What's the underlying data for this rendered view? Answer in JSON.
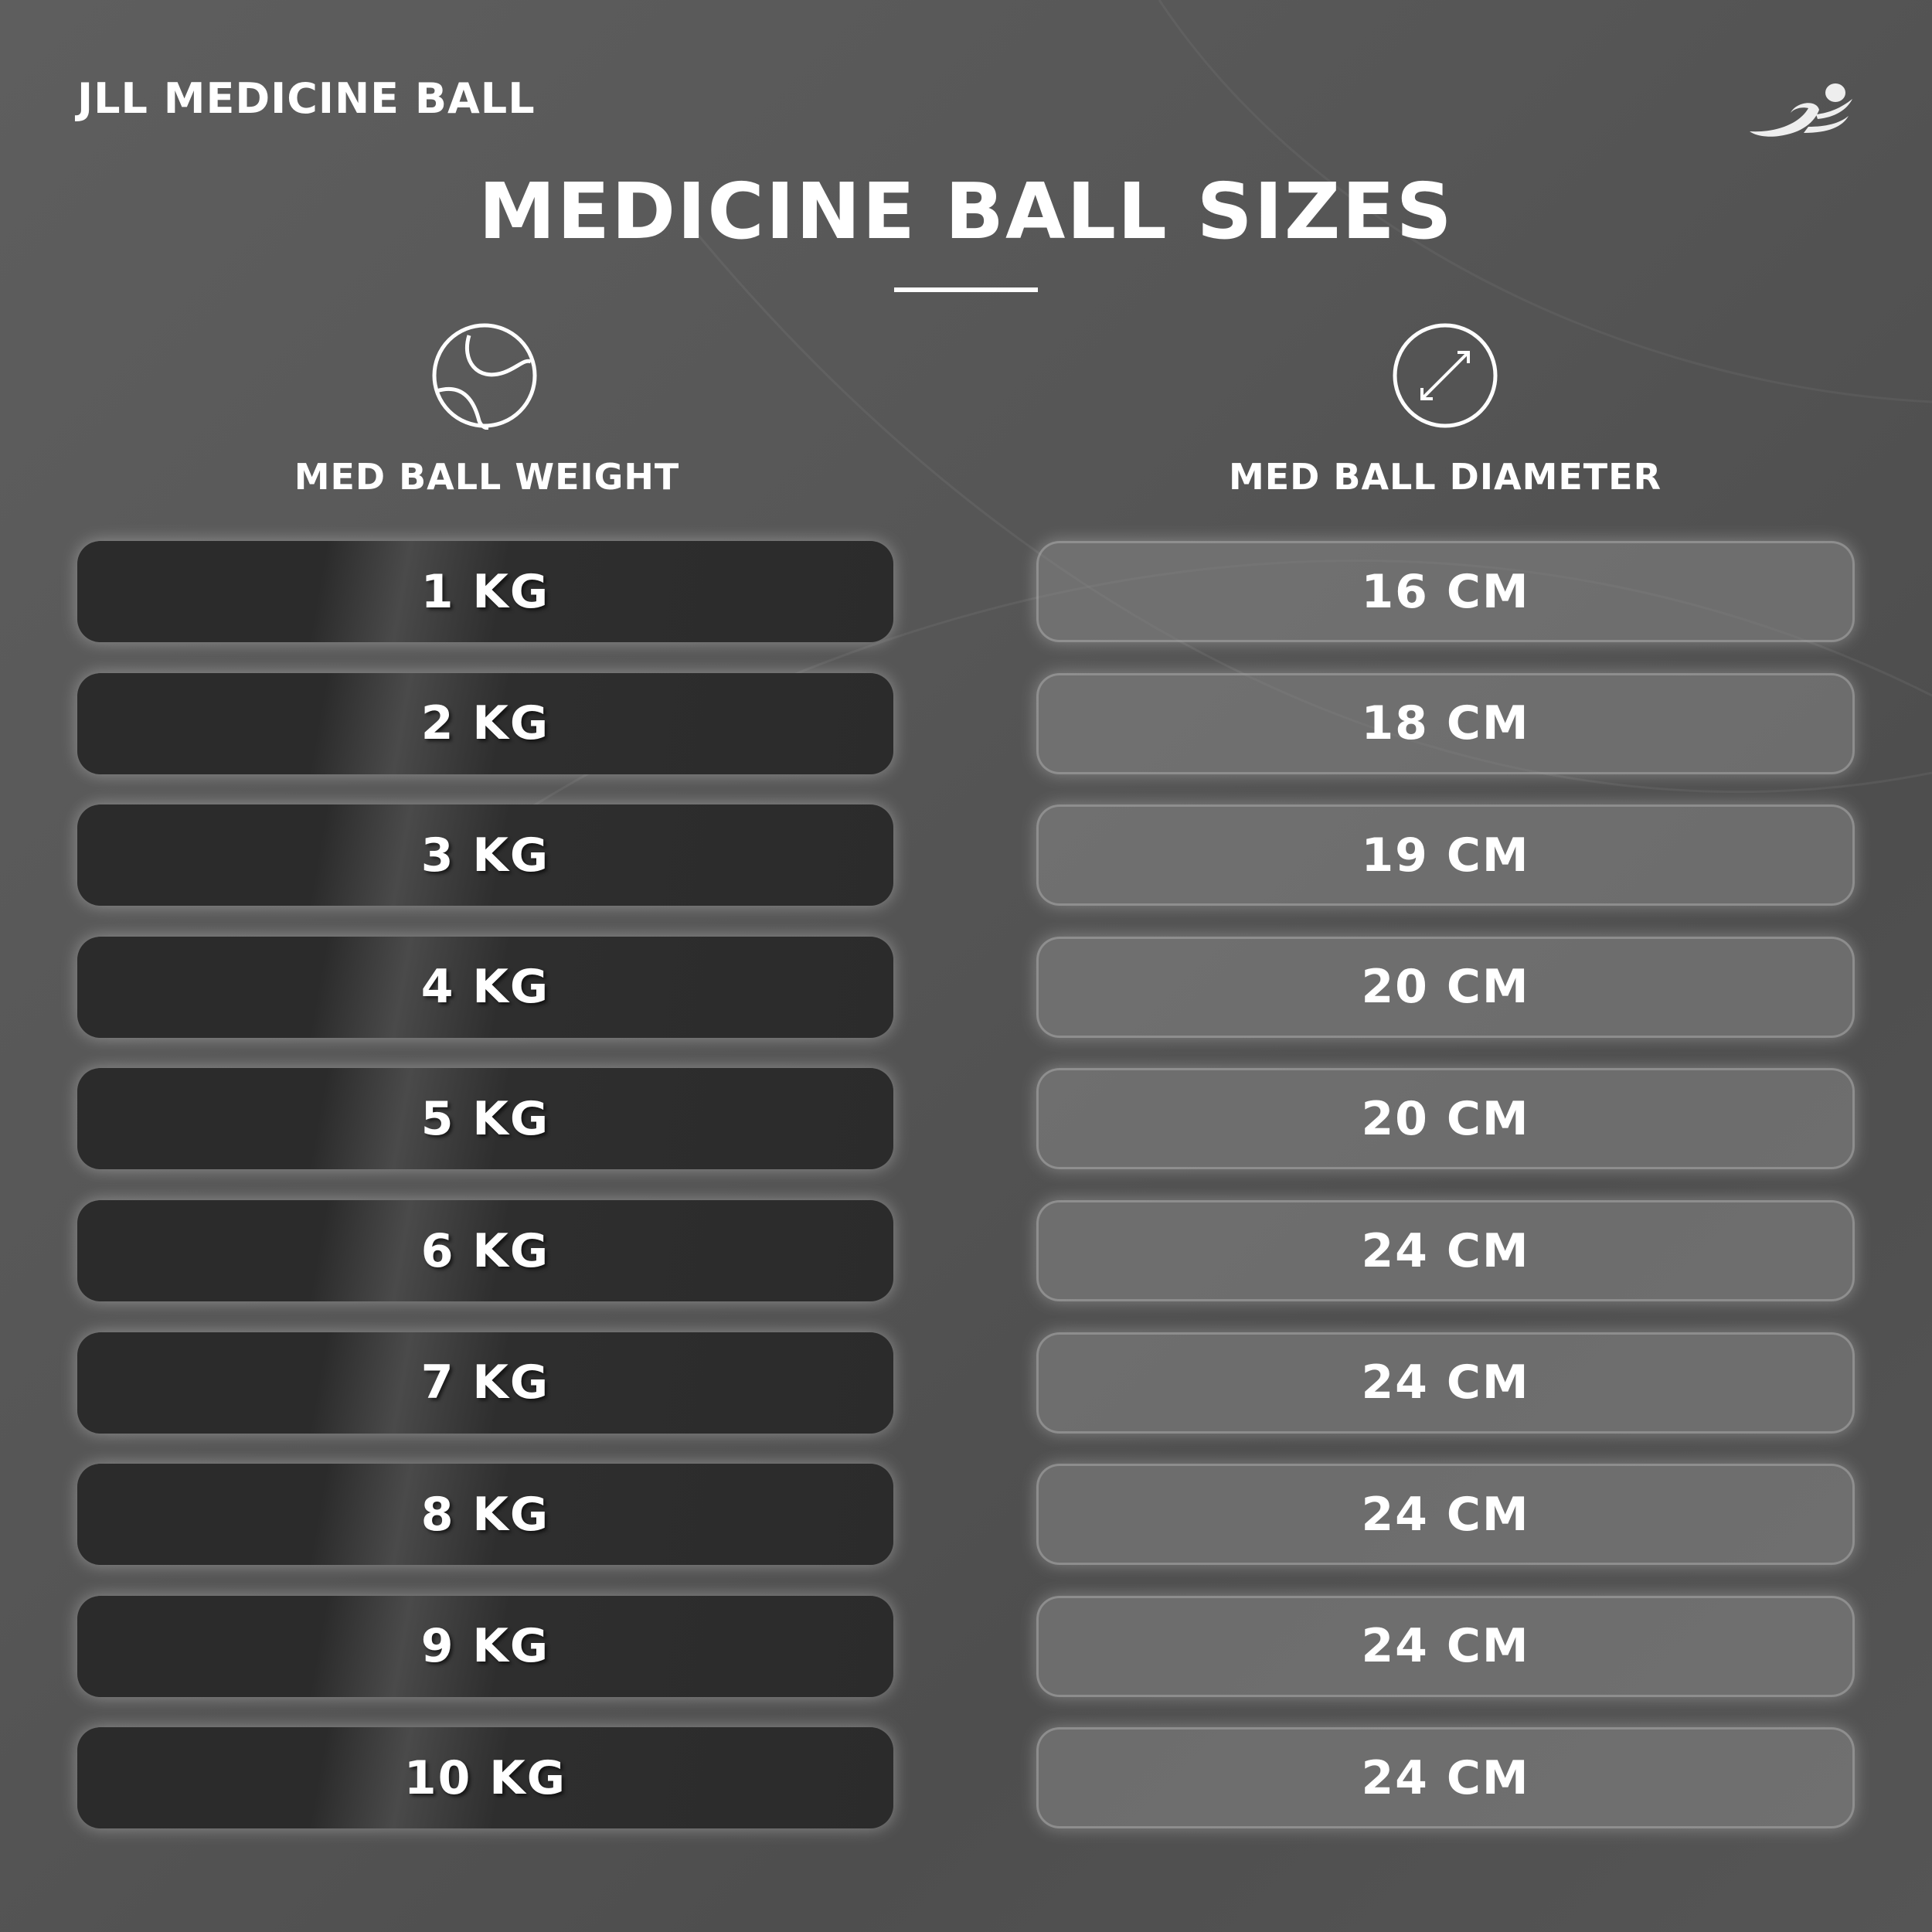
{
  "brand": "JLL MEDICINE BALL",
  "logo_icon": "running-person-icon",
  "title": "MEDICINE BALL SIZES",
  "columns": {
    "weight": {
      "label": "MED BALL WEIGHT",
      "icon": "ball-icon"
    },
    "diameter": {
      "label": "MED BALL DIAMETER",
      "icon": "diameter-arrow-icon"
    }
  },
  "rows": [
    {
      "weight": "1 KG",
      "diameter": "16 CM"
    },
    {
      "weight": "2 KG",
      "diameter": "18 CM"
    },
    {
      "weight": "3 KG",
      "diameter": "19 CM"
    },
    {
      "weight": "4 KG",
      "diameter": "20 CM"
    },
    {
      "weight": "5 KG",
      "diameter": "20 CM"
    },
    {
      "weight": "6 KG",
      "diameter": "24 CM"
    },
    {
      "weight": "7 KG",
      "diameter": "24 CM"
    },
    {
      "weight": "8 KG",
      "diameter": "24 CM"
    },
    {
      "weight": "9 KG",
      "diameter": "24 CM"
    },
    {
      "weight": "10 KG",
      "diameter": "24 CM"
    }
  ]
}
